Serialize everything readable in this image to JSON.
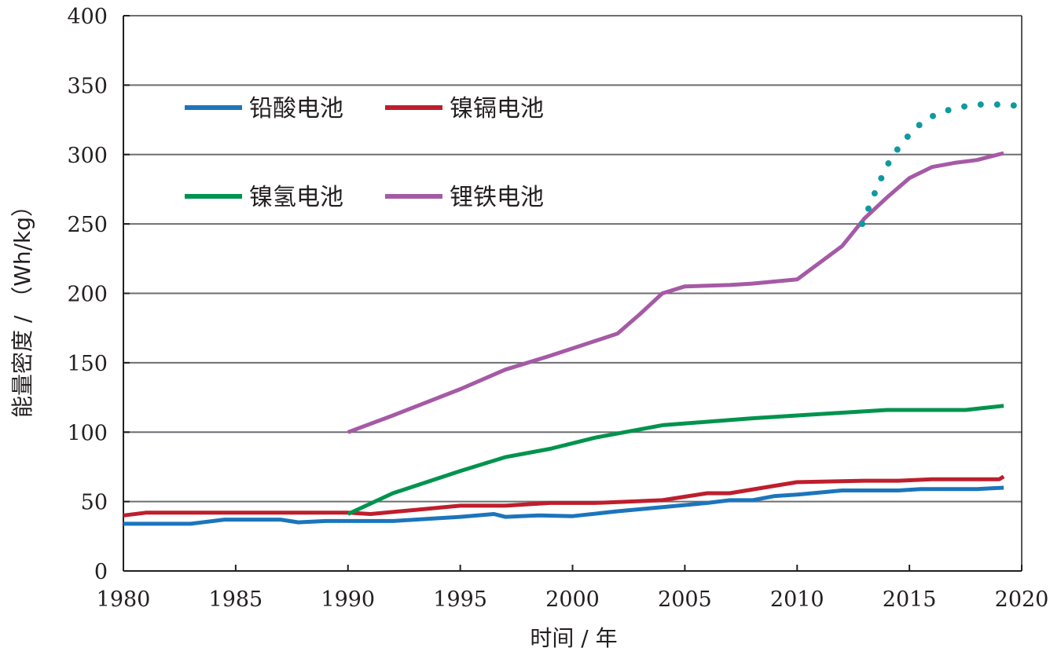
{
  "chart_data": {
    "type": "line",
    "title": "",
    "xlabel": "时间 / 年",
    "ylabel": "能量密度 / （Wh/kg）",
    "xlim": [
      1980,
      2020
    ],
    "ylim": [
      0,
      400
    ],
    "xticks": [
      "1980",
      "1985",
      "1990",
      "1995",
      "2000",
      "2005",
      "2010",
      "2015",
      "2020"
    ],
    "yticks": [
      "0",
      "50",
      "100",
      "150",
      "200",
      "250",
      "300",
      "350",
      "400"
    ],
    "grid": "horizontal",
    "legend_position": "top-left",
    "series": [
      {
        "name": "铅酸电池",
        "color": "#1b75bc",
        "style": "solid",
        "x": [
          1980,
          1983,
          1984.5,
          1987,
          1987.8,
          1989,
          1992,
          1995,
          1996.5,
          1997,
          1998.5,
          2000,
          2002,
          2004,
          2006,
          2007,
          2008,
          2009,
          2010,
          2012,
          2014.5,
          2015.5,
          2018,
          2019.2
        ],
        "y": [
          34,
          34,
          37,
          37,
          35,
          36,
          36,
          39,
          41,
          39,
          40,
          39.5,
          43,
          46,
          49,
          51,
          51,
          54,
          55,
          58,
          58,
          59,
          59,
          60
        ]
      },
      {
        "name": "镍镉电池",
        "color": "#be1e2d",
        "style": "solid",
        "x": [
          1980,
          1981,
          1984,
          1990,
          1991,
          1993,
          1995,
          1997,
          1999,
          2001,
          2004,
          2006,
          2007,
          2010,
          2013,
          2014.5,
          2016,
          2019,
          2019.2
        ],
        "y": [
          40,
          42,
          42,
          42,
          41,
          44,
          47,
          47,
          49,
          49,
          51,
          56,
          56,
          64,
          65,
          65,
          66,
          66,
          68
        ]
      },
      {
        "name": "镍氢电池",
        "color": "#00934e",
        "style": "solid",
        "x": [
          1990,
          1992,
          1995,
          1997,
          1999,
          2001,
          2004,
          2006,
          2008,
          2010,
          2012,
          2014,
          2016,
          2017.5,
          2019.2
        ],
        "y": [
          41,
          56,
          72,
          82,
          88,
          96,
          105,
          107.5,
          110,
          112,
          114,
          116,
          116,
          116,
          119
        ]
      },
      {
        "name": "锂铁电池",
        "color": "#a55aa5",
        "style": "solid",
        "x": [
          1990,
          1992,
          1995,
          1997,
          1999,
          2002,
          2003,
          2004,
          2005,
          2007,
          2008,
          2010,
          2011,
          2012,
          2013,
          2014,
          2015,
          2016,
          2017,
          2018,
          2019.2
        ],
        "y": [
          100,
          112,
          131,
          145,
          155,
          171,
          185,
          200,
          205,
          206,
          207,
          210,
          222,
          234,
          254,
          269,
          283,
          291,
          294,
          296,
          301
        ]
      },
      {
        "color": "#0e9aa0",
        "style": "dotted",
        "x": [
          2012.9,
          2013.5,
          2014,
          2014.6,
          2015.2,
          2015.8,
          2016.5,
          2017.2,
          2018,
          2019,
          2020
        ],
        "y": [
          250,
          274,
          292,
          307,
          318,
          326,
          331,
          334,
          336,
          336,
          335
        ]
      }
    ]
  }
}
